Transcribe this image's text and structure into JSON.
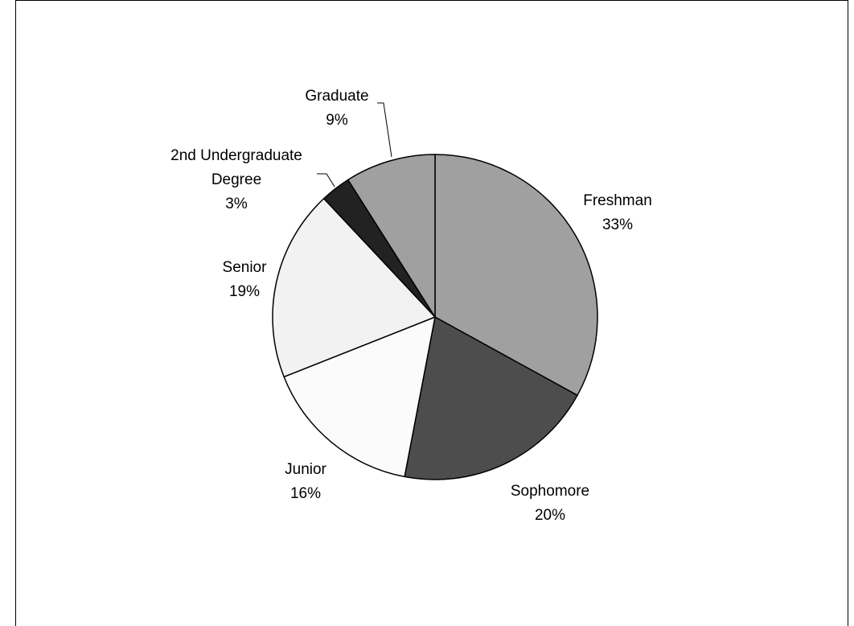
{
  "chart_data": {
    "type": "pie",
    "title": "",
    "start_angle_deg": 0,
    "direction": "clockwise",
    "slices": [
      {
        "label": "Freshman",
        "value": 33,
        "value_text": "33%",
        "color": "#a0a0a0"
      },
      {
        "label": "Sophomore",
        "value": 20,
        "value_text": "20%",
        "color": "#4d4d4d"
      },
      {
        "label": "Junior",
        "value": 16,
        "value_text": "16%",
        "color": "#fbfbfb"
      },
      {
        "label": "Senior",
        "value": 19,
        "value_text": "19%",
        "color": "#f2f2f2"
      },
      {
        "label": "2nd Undergraduate Degree",
        "value": 3,
        "value_text": "3%",
        "color": "#222222"
      },
      {
        "label": "Graduate",
        "value": 9,
        "value_text": "9%",
        "color": "#a0a0a0"
      }
    ]
  }
}
